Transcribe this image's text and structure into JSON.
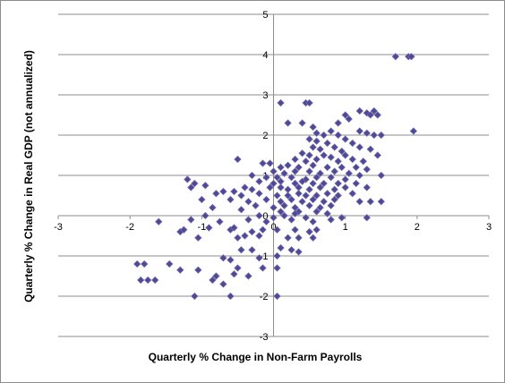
{
  "chart_data": {
    "type": "scatter",
    "title": "",
    "xlabel": "Quarterly % Change in Non-Farm Payrolls",
    "ylabel": "Quarterly % Change in Real GDP (not annualized)",
    "xlim": [
      -3,
      3
    ],
    "ylim": [
      -3,
      5
    ],
    "x_ticks": [
      "-3",
      "-2",
      "-1",
      "0",
      "1",
      "2",
      "3"
    ],
    "y_ticks": [
      "-3",
      "-2",
      "-1",
      "0",
      "1",
      "2",
      "3",
      "4",
      "5"
    ],
    "grid": "horizontal",
    "legend": "none",
    "marker": "diamond",
    "marker_color": "#4a4a9a",
    "marker_edge_color": "#7a6aa8",
    "points": [
      [
        1.7,
        3.95
      ],
      [
        1.88,
        3.95
      ],
      [
        1.92,
        3.95
      ],
      [
        1.95,
        2.1
      ],
      [
        0.1,
        2.8
      ],
      [
        0.45,
        2.8
      ],
      [
        0.5,
        2.8
      ],
      [
        1.2,
        2.6
      ],
      [
        1.3,
        2.55
      ],
      [
        1.35,
        2.5
      ],
      [
        1.4,
        2.6
      ],
      [
        1.45,
        2.5
      ],
      [
        1.0,
        2.5
      ],
      [
        1.05,
        2.4
      ],
      [
        0.9,
        2.3
      ],
      [
        0.2,
        2.3
      ],
      [
        0.4,
        2.3
      ],
      [
        0.55,
        2.2
      ],
      [
        1.2,
        2.1
      ],
      [
        1.3,
        2.05
      ],
      [
        1.4,
        2.0
      ],
      [
        1.5,
        2.0
      ],
      [
        0.6,
        2.05
      ],
      [
        0.7,
        2.0
      ],
      [
        0.8,
        2.1
      ],
      [
        0.9,
        2.0
      ],
      [
        0.5,
        1.9
      ],
      [
        0.6,
        1.85
      ],
      [
        0.75,
        1.8
      ],
      [
        1.0,
        1.9
      ],
      [
        1.1,
        1.8
      ],
      [
        0.55,
        1.7
      ],
      [
        0.65,
        1.65
      ],
      [
        0.85,
        1.7
      ],
      [
        0.95,
        1.6
      ],
      [
        1.2,
        1.7
      ],
      [
        1.35,
        1.65
      ],
      [
        0.4,
        1.55
      ],
      [
        0.5,
        1.5
      ],
      [
        0.7,
        1.5
      ],
      [
        0.8,
        1.45
      ],
      [
        1.0,
        1.5
      ],
      [
        1.45,
        1.5
      ],
      [
        0.3,
        1.4
      ],
      [
        0.45,
        1.35
      ],
      [
        0.6,
        1.4
      ],
      [
        0.9,
        1.35
      ],
      [
        1.1,
        1.4
      ],
      [
        1.25,
        1.35
      ],
      [
        -0.5,
        1.4
      ],
      [
        -0.15,
        1.3
      ],
      [
        -0.05,
        1.3
      ],
      [
        0.1,
        1.2
      ],
      [
        0.2,
        1.25
      ],
      [
        0.35,
        1.2
      ],
      [
        0.55,
        1.25
      ],
      [
        0.75,
        1.2
      ],
      [
        0.95,
        1.2
      ],
      [
        1.15,
        1.2
      ],
      [
        1.3,
        1.15
      ],
      [
        0.0,
        1.1
      ],
      [
        0.15,
        1.05
      ],
      [
        0.3,
        1.1
      ],
      [
        0.5,
        1.1
      ],
      [
        0.65,
        1.05
      ],
      [
        0.85,
        1.1
      ],
      [
        1.05,
        1.05
      ],
      [
        1.2,
        1.0
      ],
      [
        1.5,
        1.0
      ],
      [
        -0.3,
        1.0
      ],
      [
        -0.1,
        0.95
      ],
      [
        0.05,
        0.95
      ],
      [
        0.25,
        0.95
      ],
      [
        0.45,
        0.9
      ],
      [
        0.6,
        0.95
      ],
      [
        0.8,
        0.95
      ],
      [
        1.0,
        0.9
      ],
      [
        -0.2,
        0.85
      ],
      [
        0.0,
        0.8
      ],
      [
        0.1,
        0.85
      ],
      [
        0.3,
        0.8
      ],
      [
        0.4,
        0.85
      ],
      [
        0.55,
        0.8
      ],
      [
        0.7,
        0.8
      ],
      [
        0.9,
        0.8
      ],
      [
        1.15,
        0.8
      ],
      [
        -1.2,
        0.9
      ],
      [
        -1.1,
        0.8
      ],
      [
        -0.95,
        0.75
      ],
      [
        -0.7,
        0.6
      ],
      [
        -0.4,
        0.7
      ],
      [
        -0.3,
        0.65
      ],
      [
        -0.05,
        0.7
      ],
      [
        0.1,
        0.7
      ],
      [
        0.2,
        0.65
      ],
      [
        0.35,
        0.7
      ],
      [
        0.5,
        0.65
      ],
      [
        0.65,
        0.7
      ],
      [
        0.85,
        0.65
      ],
      [
        1.0,
        0.7
      ],
      [
        1.3,
        0.7
      ],
      [
        -1.15,
        0.7
      ],
      [
        -0.8,
        0.55
      ],
      [
        -0.55,
        0.6
      ],
      [
        -0.45,
        0.5
      ],
      [
        -0.2,
        0.55
      ],
      [
        0.05,
        0.5
      ],
      [
        0.2,
        0.5
      ],
      [
        0.35,
        0.55
      ],
      [
        0.45,
        0.5
      ],
      [
        0.6,
        0.5
      ],
      [
        0.75,
        0.55
      ],
      [
        0.9,
        0.5
      ],
      [
        1.1,
        0.55
      ],
      [
        -1.0,
        0.4
      ],
      [
        -0.6,
        0.4
      ],
      [
        -0.35,
        0.35
      ],
      [
        -0.1,
        0.4
      ],
      [
        0.1,
        0.35
      ],
      [
        0.25,
        0.4
      ],
      [
        0.4,
        0.35
      ],
      [
        0.55,
        0.4
      ],
      [
        0.7,
        0.35
      ],
      [
        0.85,
        0.4
      ],
      [
        1.2,
        0.35
      ],
      [
        1.35,
        0.35
      ],
      [
        1.5,
        0.35
      ],
      [
        -0.25,
        0.25
      ],
      [
        0.0,
        0.2
      ],
      [
        0.15,
        0.25
      ],
      [
        0.3,
        0.2
      ],
      [
        0.5,
        0.25
      ],
      [
        0.65,
        0.2
      ],
      [
        0.8,
        0.25
      ],
      [
        -0.85,
        0.2
      ],
      [
        -0.45,
        0.15
      ],
      [
        0.1,
        0.1
      ],
      [
        0.35,
        0.1
      ],
      [
        0.6,
        0.1
      ],
      [
        0.75,
        0.05
      ],
      [
        -0.2,
        0.0
      ],
      [
        0.0,
        -0.05
      ],
      [
        0.15,
        0.0
      ],
      [
        0.3,
        0.05
      ],
      [
        0.45,
        -0.05
      ],
      [
        1.3,
        -0.05
      ],
      [
        0.95,
        -0.05
      ],
      [
        -0.95,
        0.0
      ],
      [
        -1.15,
        -0.1
      ],
      [
        -1.6,
        -0.15
      ],
      [
        -0.75,
        -0.15
      ],
      [
        -0.35,
        -0.1
      ],
      [
        -0.1,
        -0.15
      ],
      [
        0.25,
        -0.1
      ],
      [
        0.55,
        -0.15
      ],
      [
        0.8,
        -0.1
      ],
      [
        -1.3,
        -0.4
      ],
      [
        -1.25,
        -0.35
      ],
      [
        -0.9,
        -0.3
      ],
      [
        -0.6,
        -0.35
      ],
      [
        -0.55,
        -0.3
      ],
      [
        -0.3,
        -0.4
      ],
      [
        -0.15,
        -0.35
      ],
      [
        0.05,
        -0.35
      ],
      [
        0.3,
        -0.35
      ],
      [
        0.5,
        -0.4
      ],
      [
        0.6,
        -0.35
      ],
      [
        -1.05,
        -0.55
      ],
      [
        -0.5,
        -0.55
      ],
      [
        -0.4,
        -0.5
      ],
      [
        -0.2,
        -0.5
      ],
      [
        0.2,
        -0.55
      ],
      [
        0.35,
        -0.55
      ],
      [
        0.55,
        -0.55
      ],
      [
        -0.45,
        -0.85
      ],
      [
        -0.3,
        -0.85
      ],
      [
        0.1,
        -0.8
      ],
      [
        0.25,
        -0.85
      ],
      [
        0.35,
        -0.9
      ],
      [
        -1.9,
        -1.2
      ],
      [
        -1.8,
        -1.2
      ],
      [
        -1.45,
        -1.2
      ],
      [
        -0.7,
        -1.05
      ],
      [
        -0.6,
        -1.1
      ],
      [
        -0.2,
        -1.05
      ],
      [
        0.05,
        -1.0
      ],
      [
        -1.3,
        -1.35
      ],
      [
        -1.05,
        -1.35
      ],
      [
        -0.5,
        -1.3
      ],
      [
        -0.15,
        -1.3
      ],
      [
        0.05,
        -1.3
      ],
      [
        -0.8,
        -1.5
      ],
      [
        -0.55,
        -1.45
      ],
      [
        -0.35,
        -1.5
      ],
      [
        -1.85,
        -1.6
      ],
      [
        -1.75,
        -1.6
      ],
      [
        -1.65,
        -1.6
      ],
      [
        -0.85,
        -1.6
      ],
      [
        -0.7,
        -1.7
      ],
      [
        -1.1,
        -2.0
      ],
      [
        -0.6,
        -2.0
      ],
      [
        0.05,
        -2.0
      ]
    ]
  }
}
